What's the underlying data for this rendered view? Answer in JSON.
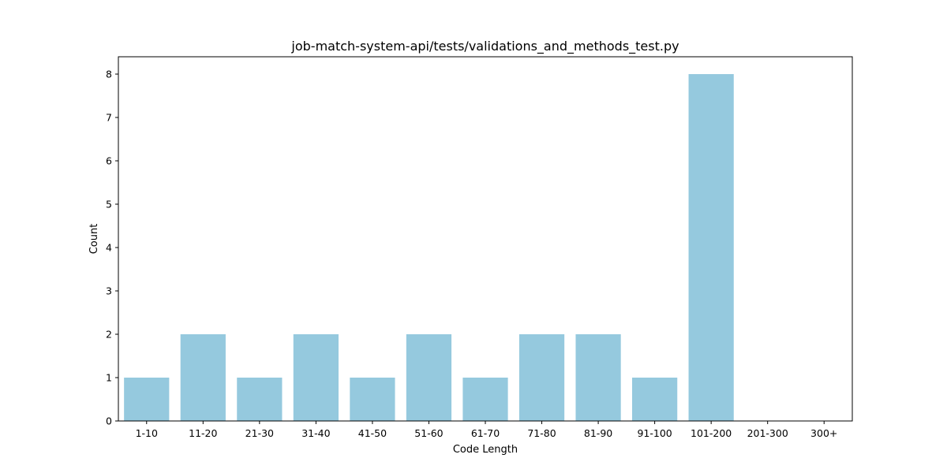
{
  "chart_data": {
    "type": "bar",
    "title": "job-match-system-api/tests/validations_and_methods_test.py",
    "xlabel": "Code Length",
    "ylabel": "Count",
    "categories": [
      "1-10",
      "11-20",
      "21-30",
      "31-40",
      "41-50",
      "51-60",
      "61-70",
      "71-80",
      "81-90",
      "91-100",
      "101-200",
      "201-300",
      "300+"
    ],
    "values": [
      1,
      2,
      1,
      2,
      1,
      2,
      1,
      2,
      2,
      1,
      8,
      0,
      0
    ],
    "ylim": [
      0,
      8.4
    ],
    "yticks": [
      0,
      1,
      2,
      3,
      4,
      5,
      6,
      7,
      8
    ],
    "bar_color": "#95c9de",
    "grid": false,
    "legend": "none"
  }
}
